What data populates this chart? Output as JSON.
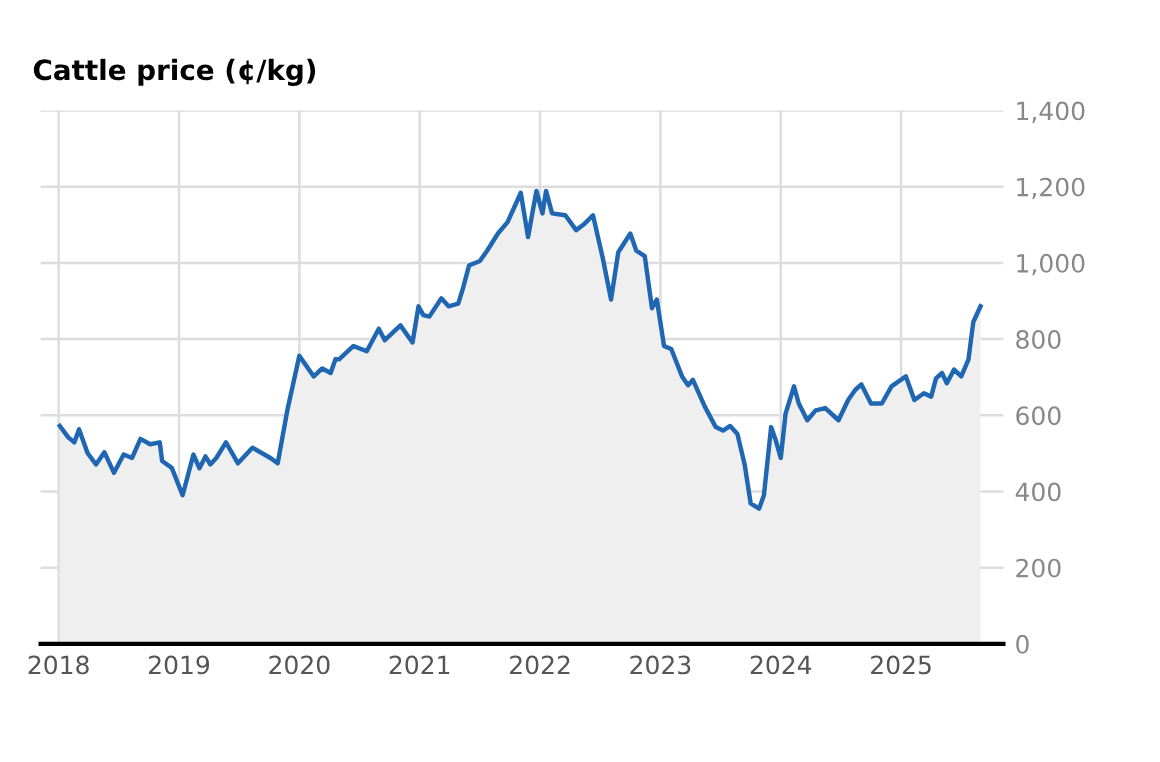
{
  "chart_data": {
    "type": "area",
    "title": "Cattle price (¢/kg)",
    "x": [
      2018.01,
      2018.08,
      2018.13,
      2018.17,
      2018.24,
      2018.31,
      2018.38,
      2018.46,
      2018.54,
      2018.61,
      2018.68,
      2018.76,
      2018.84,
      2018.86,
      2018.94,
      2019.03,
      2019.12,
      2019.17,
      2019.22,
      2019.26,
      2019.31,
      2019.39,
      2019.49,
      2019.61,
      2019.76,
      2019.82,
      2019.9,
      2020.0,
      2020.12,
      2020.19,
      2020.26,
      2020.3,
      2020.33,
      2020.45,
      2020.56,
      2020.66,
      2020.71,
      2020.84,
      2020.94,
      2020.99,
      2021.03,
      2021.08,
      2021.18,
      2021.24,
      2021.32,
      2021.36,
      2021.41,
      2021.5,
      2021.56,
      2021.65,
      2021.73,
      2021.84,
      2021.9,
      2021.97,
      2022.02,
      2022.05,
      2022.1,
      2022.21,
      2022.3,
      2022.37,
      2022.44,
      2022.52,
      2022.59,
      2022.65,
      2022.75,
      2022.8,
      2022.87,
      2022.93,
      2022.97,
      2023.03,
      2023.09,
      2023.18,
      2023.23,
      2023.27,
      2023.37,
      2023.46,
      2023.52,
      2023.58,
      2023.64,
      2023.7,
      2023.75,
      2023.82,
      2023.86,
      2023.92,
      2023.96,
      2024.0,
      2024.04,
      2024.11,
      2024.15,
      2024.22,
      2024.29,
      2024.37,
      2024.48,
      2024.56,
      2024.62,
      2024.67,
      2024.75,
      2024.84,
      2024.92,
      2025.04,
      2025.11,
      2025.19,
      2025.25,
      2025.29,
      2025.34,
      2025.38,
      2025.44,
      2025.5,
      2025.56,
      2025.6,
      2025.66
    ],
    "series": [
      {
        "color": "#1f66b3",
        "values": [
          572,
          542,
          529,
          563,
          501,
          471,
          503,
          449,
          497,
          488,
          538,
          524,
          529,
          480,
          462,
          390,
          497,
          461,
          492,
          471,
          488,
          529,
          474,
          515,
          488,
          474,
          613,
          756,
          702,
          723,
          711,
          747,
          747,
          782,
          768,
          827,
          797,
          836,
          791,
          886,
          863,
          859,
          907,
          886,
          893,
          934,
          993,
          1005,
          1032,
          1077,
          1107,
          1184,
          1068,
          1189,
          1130,
          1189,
          1130,
          1125,
          1086,
          1103,
          1125,
          1014,
          904,
          1028,
          1077,
          1032,
          1018,
          881,
          904,
          782,
          774,
          702,
          679,
          693,
          622,
          569,
          560,
          572,
          551,
          471,
          369,
          355,
          390,
          569,
          533,
          488,
          604,
          676,
          631,
          587,
          613,
          619,
          587,
          640,
          667,
          681,
          631,
          631,
          676,
          702,
          640,
          658,
          649,
          697,
          711,
          684,
          720,
          702,
          747,
          845,
          886
        ]
      }
    ],
    "xlim": [
      2017.85,
      2025.85
    ],
    "xticks": [
      2018,
      2019,
      2020,
      2021,
      2022,
      2023,
      2024,
      2025
    ],
    "ylim": [
      0,
      1400
    ],
    "yticks": [
      0,
      200,
      400,
      600,
      800,
      {
        "value": 1000,
        "label": "1,000"
      },
      {
        "value": 1200,
        "label": "1,200"
      },
      {
        "value": 1400,
        "label": "1,400"
      }
    ],
    "grid": true
  }
}
